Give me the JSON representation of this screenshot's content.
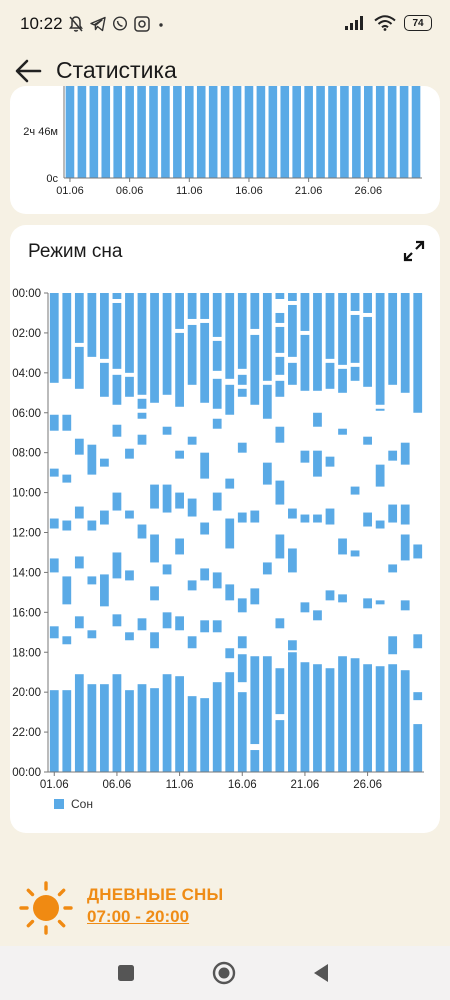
{
  "status": {
    "time": "10:22",
    "battery": "74",
    "left_icons": [
      "mute-icon",
      "telegram-icon",
      "viber-icon",
      "app-icon",
      "dot-icon"
    ],
    "right_icons": [
      "signal-icon",
      "wifi-icon",
      "battery-icon"
    ]
  },
  "app_bar": {
    "title": "Статистика"
  },
  "top_card": {
    "y_labels": [
      "2ч 46м",
      "0с"
    ],
    "x_labels": [
      "01.06",
      "06.06",
      "11.06",
      "16.06",
      "21.06",
      "26.06"
    ]
  },
  "sleep_card": {
    "title": "Режим сна",
    "legend": "Сон"
  },
  "nap": {
    "title": "ДНЕВНЫЕ СНЫ",
    "time": "07:00 - 20:00"
  },
  "colors": {
    "bar": "#5aaae6",
    "accent": "#ef8c16",
    "background": "#f6f1e4"
  },
  "chart_data": [
    {
      "type": "bar",
      "title": "",
      "categories": [
        "01.06",
        "02.06",
        "03.06",
        "04.06",
        "05.06",
        "06.06",
        "07.06",
        "08.06",
        "09.06",
        "10.06",
        "11.06",
        "12.06",
        "13.06",
        "14.06",
        "15.06",
        "16.06",
        "17.06",
        "18.06",
        "19.06",
        "20.06",
        "21.06",
        "22.06",
        "23.06",
        "24.06",
        "25.06",
        "26.06",
        "27.06",
        "28.06",
        "29.06",
        "30.06"
      ],
      "x_tick_labels": [
        "01.06",
        "06.06",
        "11.06",
        "16.06",
        "21.06",
        "26.06"
      ],
      "y_tick_labels": [
        "0с",
        "2ч 46м"
      ],
      "ylim": [
        0,
        3.5
      ],
      "values": [
        3.5,
        3.5,
        3.5,
        3.5,
        3.5,
        3.5,
        3.5,
        3.5,
        3.5,
        3.5,
        3.5,
        3.5,
        3.5,
        3.5,
        3.5,
        3.5,
        3.5,
        3.5,
        3.5,
        3.5,
        3.5,
        3.5,
        3.5,
        3.5,
        3.5,
        3.5,
        3.5,
        3.5,
        3.5,
        3.5
      ]
    },
    {
      "type": "range_bar",
      "title": "Режим сна",
      "y_unit": "hours",
      "ylim": [
        0,
        24
      ],
      "y_tick_labels": [
        "00:00",
        "02:00",
        "04:00",
        "06:00",
        "08:00",
        "10:00",
        "12:00",
        "14:00",
        "16:00",
        "18:00",
        "20:00",
        "22:00",
        "00:00"
      ],
      "x_tick_labels": [
        "01.06",
        "06.06",
        "11.06",
        "16.06",
        "21.06",
        "26.06"
      ],
      "series": [
        {
          "name": "Сон"
        }
      ],
      "days": [
        {
          "day": "01.06",
          "segments": [
            [
              0,
              4.5
            ],
            [
              6.1,
              6.9
            ],
            [
              8.8,
              9.2
            ],
            [
              11.3,
              11.8
            ],
            [
              13.3,
              14
            ],
            [
              16.7,
              17.3
            ],
            [
              19.9,
              24
            ]
          ]
        },
        {
          "day": "02.06",
          "segments": [
            [
              0,
              4.3
            ],
            [
              6.1,
              6.9
            ],
            [
              9.1,
              9.5
            ],
            [
              11.4,
              11.9
            ],
            [
              14.2,
              15.6
            ],
            [
              17.2,
              17.6
            ],
            [
              19.9,
              24
            ]
          ]
        },
        {
          "day": "03.06",
          "segments": [
            [
              0,
              2.5
            ],
            [
              2.7,
              4.8
            ],
            [
              7.3,
              8.1
            ],
            [
              10.7,
              11.3
            ],
            [
              13.2,
              13.8
            ],
            [
              16.2,
              16.8
            ],
            [
              19.1,
              24
            ]
          ]
        },
        {
          "day": "04.06",
          "segments": [
            [
              0,
              3.2
            ],
            [
              7.6,
              9.1
            ],
            [
              11.4,
              11.9
            ],
            [
              14.2,
              14.6
            ],
            [
              16.9,
              17.3
            ],
            [
              19.6,
              24
            ]
          ]
        },
        {
          "day": "05.06",
          "segments": [
            [
              0,
              3.3
            ],
            [
              3.5,
              5.2
            ],
            [
              8.3,
              8.7
            ],
            [
              10.9,
              11.6
            ],
            [
              14.1,
              15.7
            ],
            [
              19.6,
              24
            ]
          ]
        },
        {
          "day": "06.06",
          "segments": [
            [
              0,
              0.3
            ],
            [
              0.5,
              3.8
            ],
            [
              4.1,
              5.6
            ],
            [
              6.6,
              7.2
            ],
            [
              10,
              10.9
            ],
            [
              13,
              14.3
            ],
            [
              16.1,
              16.7
            ],
            [
              19.1,
              24
            ]
          ]
        },
        {
          "day": "07.06",
          "segments": [
            [
              0,
              4
            ],
            [
              4.2,
              5.2
            ],
            [
              7.8,
              8.3
            ],
            [
              10.9,
              11.3
            ],
            [
              13.9,
              14.4
            ],
            [
              17,
              17.4
            ],
            [
              19.9,
              24
            ]
          ]
        },
        {
          "day": "08.06",
          "segments": [
            [
              0,
              5.1
            ],
            [
              5.3,
              5.8
            ],
            [
              6,
              6.3
            ],
            [
              7.1,
              7.6
            ],
            [
              11.6,
              12.3
            ],
            [
              16.3,
              16.9
            ],
            [
              19.6,
              24
            ]
          ]
        },
        {
          "day": "09.06",
          "segments": [
            [
              0,
              5.5
            ],
            [
              9.6,
              10.8
            ],
            [
              12.1,
              13.5
            ],
            [
              14.7,
              15.4
            ],
            [
              17,
              17.8
            ],
            [
              19.8,
              24
            ]
          ]
        },
        {
          "day": "10.06",
          "segments": [
            [
              0,
              5.1
            ],
            [
              6.7,
              7.1
            ],
            [
              9.6,
              11
            ],
            [
              13.6,
              14.1
            ],
            [
              16,
              16.8
            ],
            [
              19.1,
              24
            ]
          ]
        },
        {
          "day": "11.06",
          "segments": [
            [
              0,
              1.8
            ],
            [
              2,
              5.7
            ],
            [
              7.9,
              8.3
            ],
            [
              10,
              10.8
            ],
            [
              12.3,
              13.1
            ],
            [
              16.2,
              16.9
            ],
            [
              19.2,
              24
            ]
          ]
        },
        {
          "day": "12.06",
          "segments": [
            [
              0,
              1.3
            ],
            [
              1.6,
              4.6
            ],
            [
              7.2,
              7.6
            ],
            [
              10.3,
              11.2
            ],
            [
              14.4,
              14.9
            ],
            [
              17.2,
              17.8
            ],
            [
              20.2,
              24
            ]
          ]
        },
        {
          "day": "13.06",
          "segments": [
            [
              0,
              1.3
            ],
            [
              1.5,
              5.5
            ],
            [
              8,
              9.3
            ],
            [
              11.5,
              12.1
            ],
            [
              13.8,
              14.4
            ],
            [
              16.4,
              17
            ],
            [
              20.3,
              24
            ]
          ]
        },
        {
          "day": "14.06",
          "segments": [
            [
              0,
              2.2
            ],
            [
              2.4,
              3.9
            ],
            [
              4.3,
              5.8
            ],
            [
              6.3,
              6.8
            ],
            [
              10,
              10.9
            ],
            [
              14,
              14.8
            ],
            [
              16.4,
              17
            ],
            [
              19.5,
              24
            ]
          ]
        },
        {
          "day": "15.06",
          "segments": [
            [
              0,
              4.3
            ],
            [
              4.6,
              6.1
            ],
            [
              9.3,
              9.8
            ],
            [
              11.3,
              12.8
            ],
            [
              14.6,
              15.4
            ],
            [
              17.8,
              18.3
            ],
            [
              19,
              24
            ]
          ]
        },
        {
          "day": "16.06",
          "segments": [
            [
              0,
              3.8
            ],
            [
              4.1,
              4.6
            ],
            [
              4.8,
              5.2
            ],
            [
              7.5,
              8
            ],
            [
              11,
              11.5
            ],
            [
              15.3,
              16
            ],
            [
              17.2,
              17.8
            ],
            [
              18.1,
              19.5
            ],
            [
              20,
              24
            ]
          ]
        },
        {
          "day": "17.06",
          "segments": [
            [
              0,
              1.8
            ],
            [
              2.1,
              5.6
            ],
            [
              10.9,
              11.5
            ],
            [
              14.8,
              15.6
            ],
            [
              18.2,
              22.6
            ],
            [
              22.9,
              24
            ]
          ]
        },
        {
          "day": "18.06",
          "segments": [
            [
              0,
              4.4
            ],
            [
              4.6,
              6.3
            ],
            [
              8.5,
              9.6
            ],
            [
              13.5,
              14.1
            ],
            [
              18.2,
              24
            ]
          ]
        },
        {
          "day": "19.06",
          "segments": [
            [
              0,
              0.3
            ],
            [
              1,
              1.5
            ],
            [
              1.7,
              3
            ],
            [
              3.2,
              4.1
            ],
            [
              4.4,
              5.2
            ],
            [
              6.7,
              7.5
            ],
            [
              9.4,
              10.6
            ],
            [
              12.1,
              13.3
            ],
            [
              16.3,
              16.8
            ],
            [
              18.8,
              21.1
            ],
            [
              21.4,
              24
            ]
          ]
        },
        {
          "day": "20.06",
          "segments": [
            [
              0,
              0.4
            ],
            [
              0.6,
              3.2
            ],
            [
              3.5,
              4.6
            ],
            [
              10.8,
              11.3
            ],
            [
              12.8,
              14
            ],
            [
              17.4,
              17.9
            ],
            [
              18,
              24
            ]
          ]
        },
        {
          "day": "21.06",
          "segments": [
            [
              0,
              1.9
            ],
            [
              2.1,
              4.9
            ],
            [
              7.9,
              8.5
            ],
            [
              11.1,
              11.5
            ],
            [
              15.5,
              16
            ],
            [
              18.5,
              24
            ]
          ]
        },
        {
          "day": "22.06",
          "segments": [
            [
              0,
              4.9
            ],
            [
              6,
              6.7
            ],
            [
              7.9,
              9.2
            ],
            [
              11.1,
              11.5
            ],
            [
              15.9,
              16.4
            ],
            [
              18.6,
              24
            ]
          ]
        },
        {
          "day": "23.06",
          "segments": [
            [
              0,
              3.3
            ],
            [
              3.5,
              4.8
            ],
            [
              8.2,
              8.7
            ],
            [
              10.8,
              11.6
            ],
            [
              14.9,
              15.4
            ],
            [
              18.8,
              24
            ]
          ]
        },
        {
          "day": "24.06",
          "segments": [
            [
              0,
              3.6
            ],
            [
              3.8,
              5
            ],
            [
              6.8,
              7.1
            ],
            [
              12.3,
              13.1
            ],
            [
              15.1,
              15.5
            ],
            [
              18.2,
              24
            ]
          ]
        },
        {
          "day": "25.06",
          "segments": [
            [
              0,
              0.9
            ],
            [
              1.1,
              3.5
            ],
            [
              3.7,
              4.4
            ],
            [
              9.7,
              10.1
            ],
            [
              12.9,
              13.2
            ],
            [
              18.3,
              24
            ]
          ]
        },
        {
          "day": "26.06",
          "segments": [
            [
              0,
              1
            ],
            [
              1.2,
              4.7
            ],
            [
              7.2,
              7.6
            ],
            [
              11,
              11.7
            ],
            [
              15.3,
              15.8
            ],
            [
              18.6,
              24
            ]
          ]
        },
        {
          "day": "27.06",
          "segments": [
            [
              0,
              5.6
            ],
            [
              5.8,
              5.9
            ],
            [
              8.6,
              9.7
            ],
            [
              11.4,
              11.8
            ],
            [
              15.4,
              15.6
            ],
            [
              18.7,
              24
            ]
          ]
        },
        {
          "day": "28.06",
          "segments": [
            [
              0,
              4.6
            ],
            [
              7.9,
              8.4
            ],
            [
              10.6,
              11.5
            ],
            [
              13.6,
              14
            ],
            [
              17.2,
              18.1
            ],
            [
              18.6,
              24
            ]
          ]
        },
        {
          "day": "29.06",
          "segments": [
            [
              0,
              5
            ],
            [
              7.5,
              8.6
            ],
            [
              10.6,
              11.6
            ],
            [
              12.1,
              13.4
            ],
            [
              15.4,
              15.9
            ],
            [
              18.9,
              24
            ]
          ]
        },
        {
          "day": "30.06",
          "segments": [
            [
              0,
              6
            ],
            [
              12.6,
              13.3
            ],
            [
              17.1,
              17.8
            ],
            [
              20,
              20.4
            ],
            [
              21.6,
              24
            ]
          ]
        }
      ]
    }
  ]
}
